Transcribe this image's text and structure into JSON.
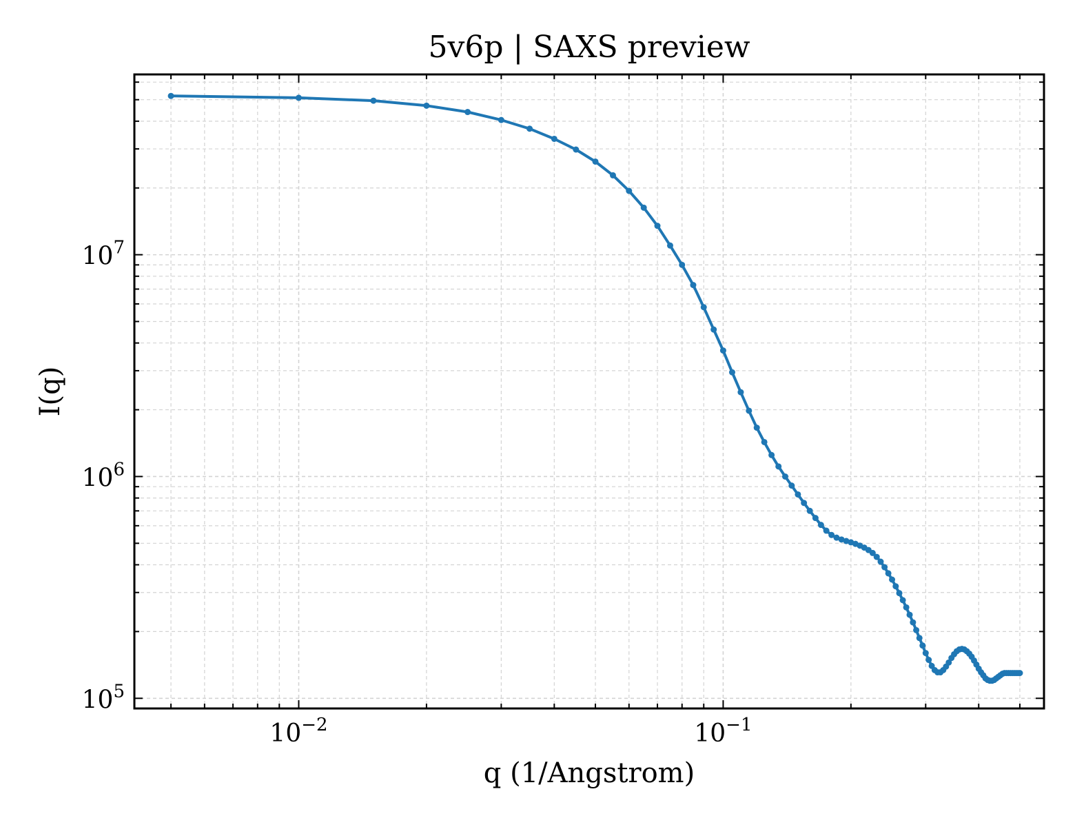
{
  "chart_data": {
    "type": "line",
    "title": "5v6p | SAXS preview",
    "xlabel": "q (1/Angstrom)",
    "ylabel": "I(q)",
    "x_scale": "log",
    "y_scale": "log",
    "xlim": [
      0.0041,
      0.57
    ],
    "ylim": [
      90000,
      65000000
    ],
    "x_ticks": [
      {
        "value": 0.01,
        "base": "10",
        "exp": "−2"
      },
      {
        "value": 0.1,
        "base": "10",
        "exp": "−1"
      }
    ],
    "y_ticks": [
      {
        "value": 100000,
        "base": "10",
        "exp": "5"
      },
      {
        "value": 1000000,
        "base": "10",
        "exp": "6"
      },
      {
        "value": 10000000,
        "base": "10",
        "exp": "7"
      }
    ],
    "grid": true,
    "legend": "none",
    "colors": {
      "series": "#1f77b4",
      "grid": "#d3d3d3",
      "axes": "#000000"
    },
    "series": [
      {
        "x": [
          0.005,
          0.01,
          0.015,
          0.02,
          0.025,
          0.03,
          0.035,
          0.04,
          0.045,
          0.05,
          0.055,
          0.06,
          0.065,
          0.07,
          0.075,
          0.08,
          0.085,
          0.09,
          0.095,
          0.1,
          0.105,
          0.11,
          0.115,
          0.12,
          0.125,
          0.13,
          0.135,
          0.14,
          0.145,
          0.15,
          0.155,
          0.16,
          0.165,
          0.17,
          0.175,
          0.18,
          0.185,
          0.19,
          0.195,
          0.2,
          0.205,
          0.21,
          0.215,
          0.22,
          0.225,
          0.23,
          0.235,
          0.24,
          0.245,
          0.25,
          0.255,
          0.26,
          0.265,
          0.27,
          0.275,
          0.28,
          0.285,
          0.29,
          0.295,
          0.3,
          0.305,
          0.31,
          0.315,
          0.32,
          0.325,
          0.33,
          0.335,
          0.34,
          0.345,
          0.35,
          0.355,
          0.36,
          0.365,
          0.37,
          0.375,
          0.38,
          0.385,
          0.39,
          0.395,
          0.4,
          0.405,
          0.41,
          0.415,
          0.42,
          0.425,
          0.43,
          0.435,
          0.44,
          0.445,
          0.45,
          0.455,
          0.46,
          0.465,
          0.47,
          0.475,
          0.48,
          0.485,
          0.49,
          0.495,
          0.5
        ],
        "y": [
          52000000,
          51000000,
          49500000,
          47000000,
          44000000,
          40500000,
          37000000,
          33300000,
          29800000,
          26300000,
          22800000,
          19400000,
          16300000,
          13500000,
          11000000,
          9000000,
          7300000,
          5800000,
          4600000,
          3700000,
          2950000,
          2400000,
          1980000,
          1660000,
          1430000,
          1250000,
          1110000,
          1000000,
          910000,
          830000,
          760000,
          700000,
          650000,
          605000,
          570000,
          545000,
          530000,
          520000,
          512000,
          505000,
          497000,
          488000,
          478000,
          466000,
          452000,
          434000,
          413000,
          390000,
          366000,
          343000,
          320000,
          298000,
          277000,
          257000,
          238000,
          220000,
          203000,
          187000,
          173000,
          160000,
          149000,
          140000,
          134000,
          131000,
          131000,
          134000,
          139000,
          145000,
          152000,
          158000,
          163000,
          166000,
          167000,
          166000,
          163000,
          159000,
          154000,
          148000,
          142000,
          136000,
          131000,
          127000,
          123000,
          121000,
          120000,
          120000,
          121000,
          123000,
          125000,
          127000,
          129000,
          130000,
          130000,
          130000,
          130000,
          130000,
          130000,
          130000,
          130000,
          130000
        ]
      }
    ]
  }
}
